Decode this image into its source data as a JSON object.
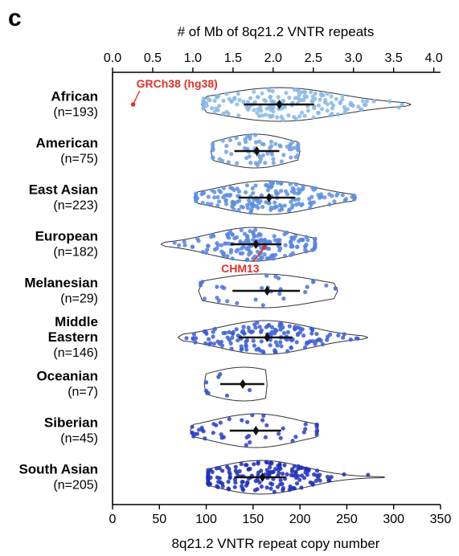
{
  "panel_label": "c",
  "chart_data": {
    "type": "violin",
    "title": "",
    "xlabel": "8q21.2 VNTR repeat copy number",
    "x2label": "# of Mb of 8q21.2 VNTR repeats",
    "xlim": [
      0,
      350
    ],
    "xticks": [
      "0",
      "50",
      "100",
      "150",
      "200",
      "250",
      "300",
      "350"
    ],
    "x2ticks": [
      "0.0",
      "0.5",
      "1.0",
      "1.5",
      "2.0",
      "2.5",
      "3.0",
      "3.5",
      "4.0"
    ],
    "grid": false,
    "categories": [
      {
        "name": "African",
        "n_label": "(n=193)"
      },
      {
        "name": "American",
        "n_label": "(n=75)"
      },
      {
        "name": "East Asian",
        "n_label": "(n=223)"
      },
      {
        "name": "European",
        "n_label": "(n=182)"
      },
      {
        "name": "Melanesian",
        "n_label": "(n=29)"
      },
      {
        "name": "Middle Eastern",
        "n_label": "(n=146)"
      },
      {
        "name": "Oceanian",
        "n_label": "(n=7)"
      },
      {
        "name": "Siberian",
        "n_label": "(n=45)"
      },
      {
        "name": "South Asian",
        "n_label": "(n=205)"
      }
    ],
    "series": [
      {
        "name": "African",
        "min": 95,
        "max": 318,
        "q1": 140,
        "median": 178,
        "q3": 215,
        "mean": 178,
        "count": 193,
        "color": "#87b9e6"
      },
      {
        "name": "American",
        "min": 105,
        "max": 200,
        "q1": 130,
        "median": 152,
        "q3": 178,
        "mean": 154,
        "count": 75,
        "color": "#6d9fe0"
      },
      {
        "name": "East Asian",
        "min": 87,
        "max": 260,
        "q1": 135,
        "median": 165,
        "q3": 195,
        "mean": 167,
        "count": 223,
        "color": "#5d8fe0"
      },
      {
        "name": "European",
        "min": 52,
        "max": 218,
        "q1": 126,
        "median": 150,
        "q3": 180,
        "mean": 153,
        "count": 182,
        "color": "#5685de"
      },
      {
        "name": "Melanesian",
        "min": 92,
        "max": 240,
        "q1": 128,
        "median": 160,
        "q3": 200,
        "mean": 165,
        "count": 29,
        "color": "#4a72d8"
      },
      {
        "name": "Middle Eastern",
        "min": 70,
        "max": 272,
        "q1": 135,
        "median": 163,
        "q3": 192,
        "mean": 165,
        "count": 146,
        "color": "#3a5dd4"
      },
      {
        "name": "Oceanian",
        "min": 98,
        "max": 165,
        "q1": 115,
        "median": 140,
        "q3": 162,
        "mean": 139,
        "count": 7,
        "color": "#2f4bcd"
      },
      {
        "name": "Siberian",
        "min": 83,
        "max": 220,
        "q1": 125,
        "median": 153,
        "q3": 180,
        "mean": 153,
        "count": 45,
        "color": "#2a3fc6"
      },
      {
        "name": "South Asian",
        "min": 100,
        "max": 290,
        "q1": 130,
        "median": 158,
        "q3": 185,
        "mean": 160,
        "count": 205,
        "color": "#1f2fb8"
      }
    ],
    "annotations": [
      {
        "text": "GRCh38 (hg38)",
        "x": 22,
        "category": "African",
        "color": "#e0312d"
      },
      {
        "text": "CHM13",
        "x": 162,
        "category": "European",
        "color": "#e0312d"
      }
    ]
  }
}
